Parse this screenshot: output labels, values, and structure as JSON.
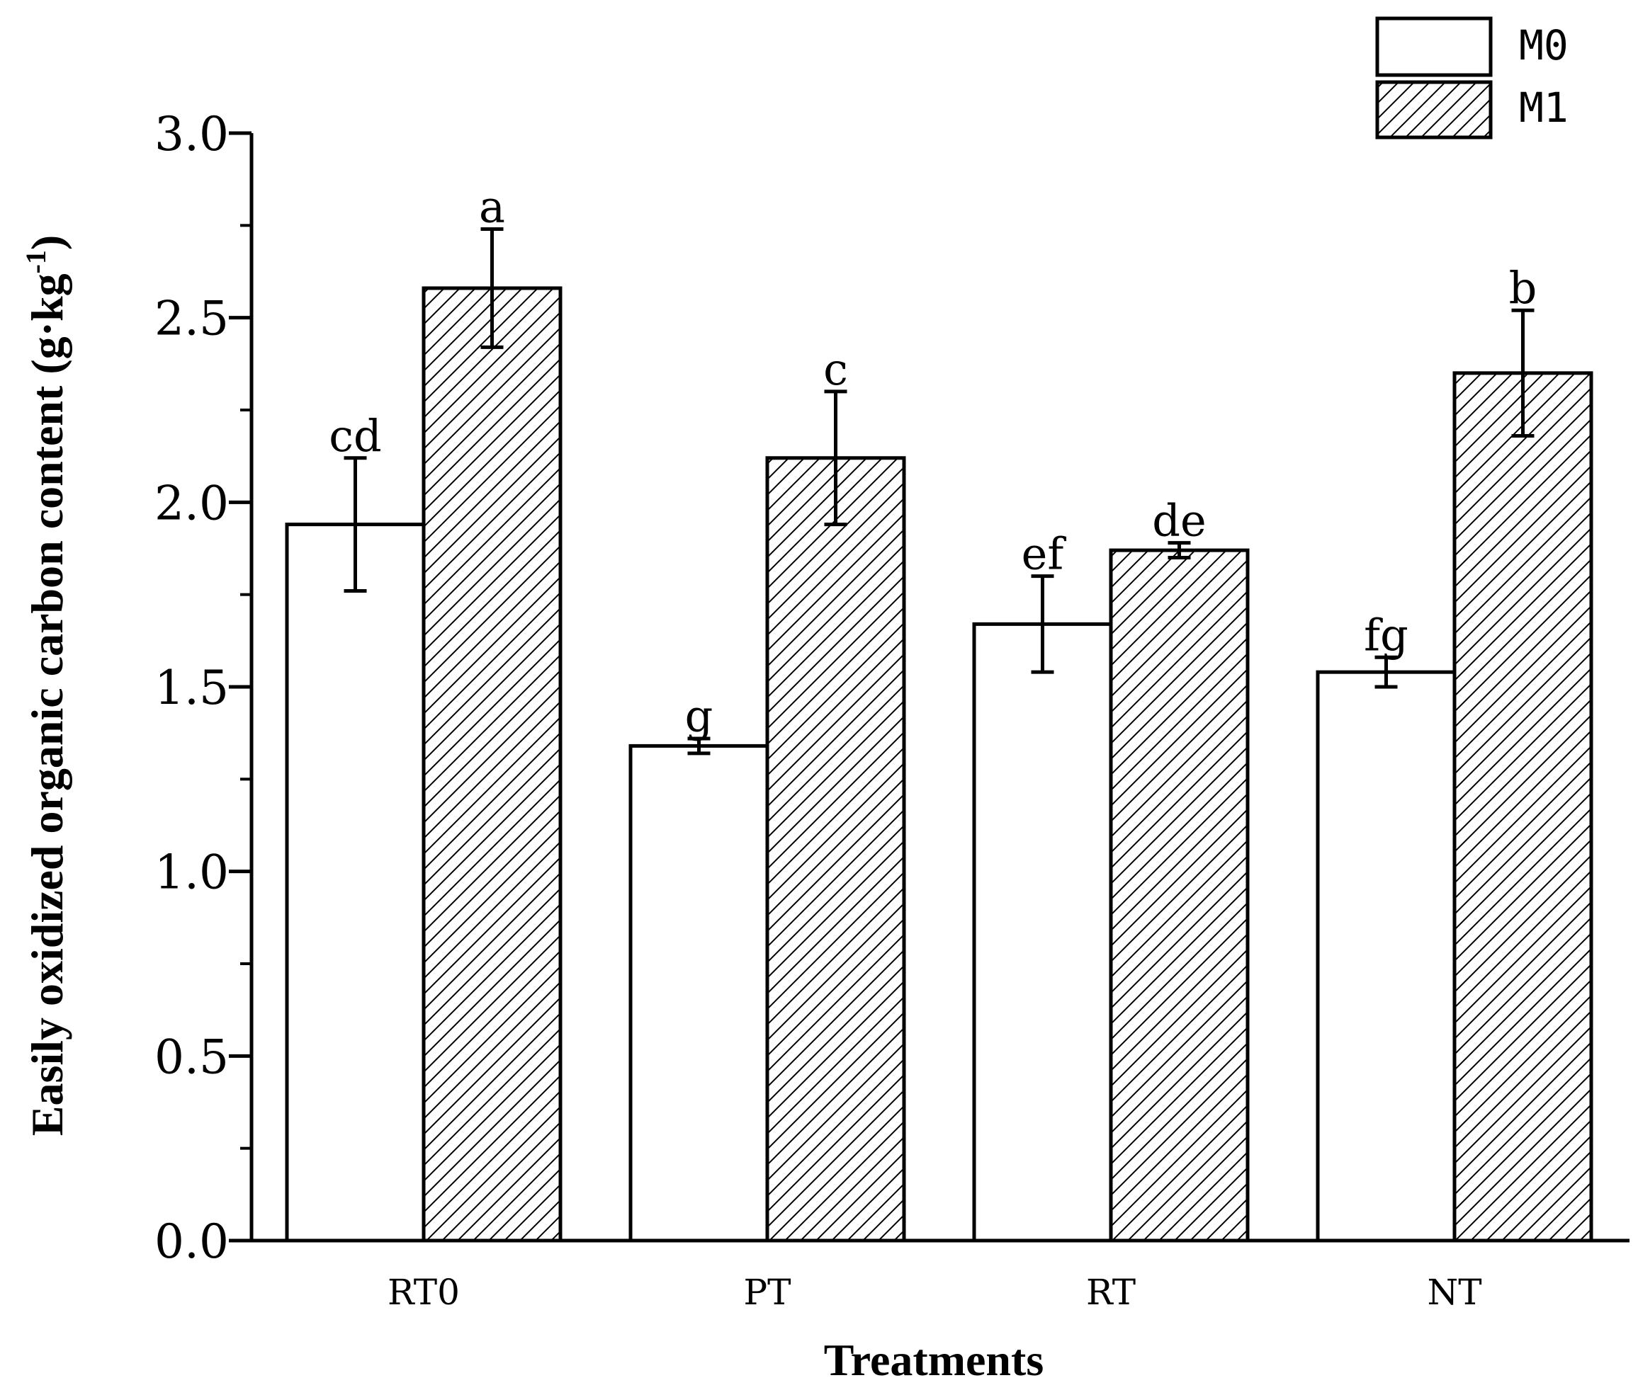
{
  "chart_data": {
    "type": "bar",
    "title": "",
    "xlabel": "Treatments",
    "ylabel": "Easily oxidized organic carbon content (g·kg",
    "ylabel_superscript": "-1",
    "ylabel_close": ")",
    "ylim": [
      0,
      3.0
    ],
    "yticks": [
      "0.0",
      "0.5",
      "1.0",
      "1.5",
      "2.0",
      "2.5",
      "3.0"
    ],
    "categories": [
      "RT0",
      "PT",
      "RT",
      "NT"
    ],
    "series": [
      {
        "name": "M0",
        "pattern": "none",
        "values": [
          1.94,
          1.34,
          1.67,
          1.54
        ],
        "errors": [
          0.18,
          0.02,
          0.13,
          0.04
        ],
        "labels": [
          "cd",
          "g",
          "ef",
          "fg"
        ]
      },
      {
        "name": "M1",
        "pattern": "hatch",
        "values": [
          2.58,
          2.12,
          1.87,
          2.35
        ],
        "errors": [
          0.16,
          0.18,
          0.02,
          0.17
        ],
        "labels": [
          "a",
          "c",
          "de",
          "b"
        ]
      }
    ],
    "legend_position": "top-right",
    "colors": {
      "bar_fill": "#ffffff",
      "stroke": "#000000"
    }
  }
}
